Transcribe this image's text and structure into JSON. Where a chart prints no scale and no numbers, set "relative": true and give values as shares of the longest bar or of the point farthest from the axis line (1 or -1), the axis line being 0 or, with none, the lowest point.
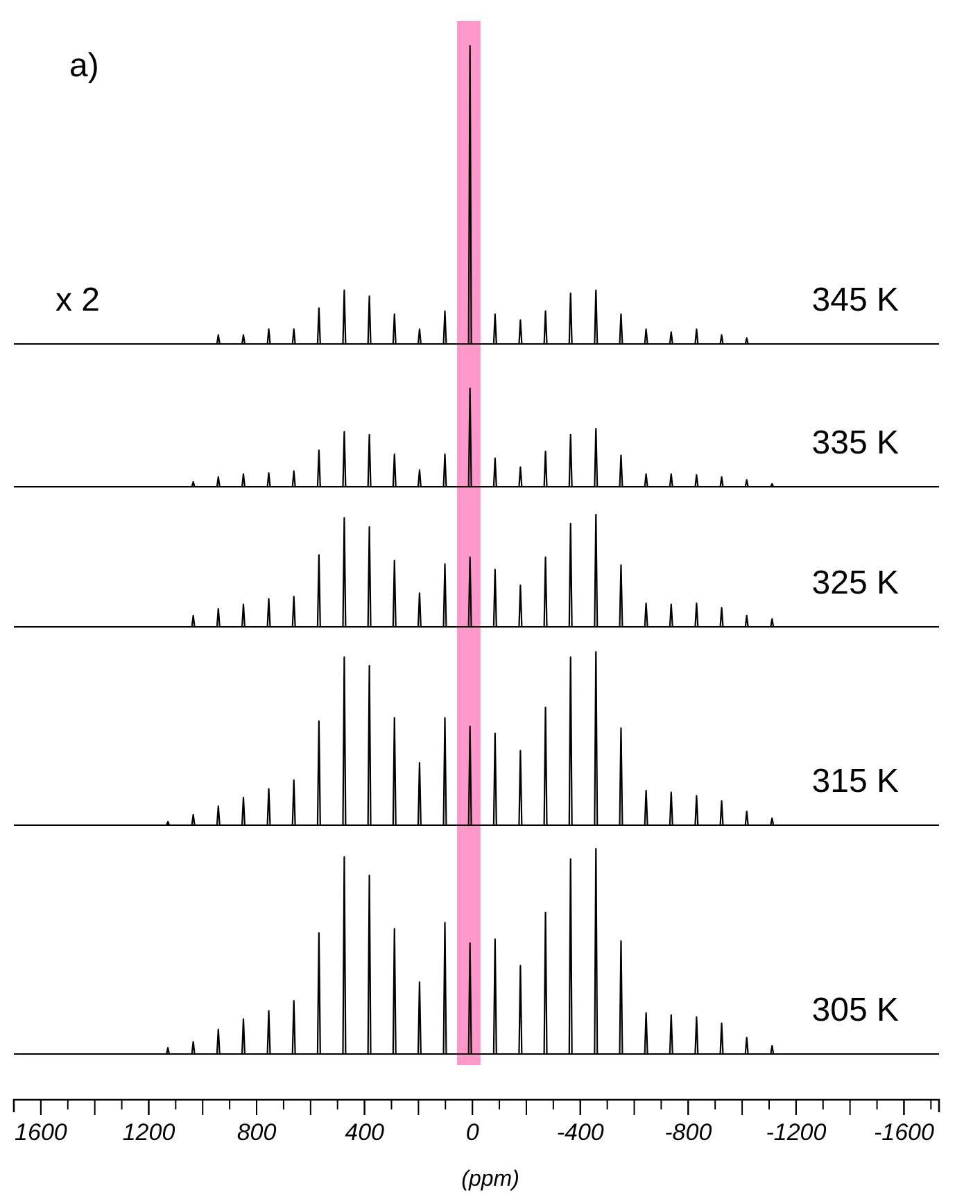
{
  "chart_data": [
    {
      "type": "line",
      "relative": true,
      "xlim": [
        1700,
        -1730
      ],
      "tick_labels": false,
      "annotations": [
        "a)",
        "x 2"
      ],
      "bands": [
        {
          "axis": "x",
          "from": 57,
          "to": -30,
          "color": "#ff99cc"
        }
      ],
      "x": [
        1700,
        1134,
        1129,
        1124,
        1040,
        1035,
        1030,
        947,
        942,
        937,
        854,
        849,
        844,
        760,
        755,
        750,
        667,
        662,
        657,
        574,
        569,
        564,
        480,
        475,
        470,
        387,
        382,
        377,
        294,
        289,
        284,
        201,
        196,
        191,
        107,
        102,
        97,
        14,
        9,
        4,
        -79,
        -84,
        -89,
        -173,
        -178,
        -183,
        -266,
        -271,
        -276,
        -359,
        -364,
        -369,
        -453,
        -458,
        -463,
        -546,
        -551,
        -556,
        -639,
        -644,
        -649,
        -732,
        -737,
        -742,
        -826,
        -831,
        -836,
        -919,
        -924,
        -929,
        -1012,
        -1017,
        -1022,
        -1106,
        -1111,
        -1116,
        -1730
      ],
      "series": [
        {
          "name": "345 K",
          "color": "#000000",
          "values": [
            0,
            0,
            0,
            0,
            0,
            0,
            0,
            0,
            0.03,
            0,
            0,
            0.03,
            0,
            0,
            0.05,
            0,
            0,
            0.05,
            0,
            0,
            0.12,
            0,
            0,
            0.18,
            0,
            0,
            0.16,
            0,
            0,
            0.1,
            0,
            0,
            0.05,
            0,
            0,
            0.11,
            0,
            0,
            1,
            0,
            0,
            0.1,
            0,
            0,
            0.08,
            0,
            0,
            0.11,
            0,
            0,
            0.17,
            0,
            0,
            0.18,
            0,
            0,
            0.1,
            0,
            0,
            0.05,
            0,
            0,
            0.04,
            0,
            0,
            0.05,
            0,
            0,
            0.03,
            0,
            0,
            0.02,
            0,
            0,
            0,
            0,
            0
          ]
        }
      ]
    },
    {
      "type": "line",
      "relative": true,
      "xlim": [
        1700,
        -1730
      ],
      "tick_labels": false,
      "bands": [
        {
          "axis": "x",
          "from": 57,
          "to": -30,
          "color": "#ff99cc"
        }
      ],
      "x": [
        1700,
        1134,
        1129,
        1124,
        1040,
        1035,
        1030,
        947,
        942,
        937,
        854,
        849,
        844,
        760,
        755,
        750,
        667,
        662,
        657,
        574,
        569,
        564,
        480,
        475,
        470,
        387,
        382,
        377,
        294,
        289,
        284,
        201,
        196,
        191,
        107,
        102,
        97,
        14,
        9,
        4,
        -79,
        -84,
        -89,
        -173,
        -178,
        -183,
        -266,
        -271,
        -276,
        -359,
        -364,
        -369,
        -453,
        -458,
        -463,
        -546,
        -551,
        -556,
        -639,
        -644,
        -649,
        -732,
        -737,
        -742,
        -826,
        -831,
        -836,
        -919,
        -924,
        -929,
        -1012,
        -1017,
        -1022,
        -1106,
        -1111,
        -1116,
        -1730
      ],
      "series": [
        {
          "name": "335 K",
          "color": "#000000",
          "values": [
            0,
            0,
            0,
            0,
            0,
            0.05,
            0,
            0,
            0.1,
            0,
            0,
            0.13,
            0,
            0,
            0.14,
            0,
            0,
            0.16,
            0,
            0,
            0.37,
            0,
            0,
            0.56,
            0,
            0,
            0.53,
            0,
            0,
            0.33,
            0,
            0,
            0.17,
            0,
            0,
            0.33,
            0,
            0,
            1,
            0,
            0,
            0.29,
            0,
            0,
            0.2,
            0,
            0,
            0.36,
            0,
            0,
            0.53,
            0,
            0,
            0.59,
            0,
            0,
            0.32,
            0,
            0,
            0.13,
            0,
            0,
            0.13,
            0,
            0,
            0.12,
            0,
            0,
            0.1,
            0,
            0,
            0.07,
            0,
            0,
            0.03,
            0,
            0
          ]
        }
      ]
    },
    {
      "type": "line",
      "relative": true,
      "xlim": [
        1700,
        -1730
      ],
      "tick_labels": false,
      "bands": [
        {
          "axis": "x",
          "from": 57,
          "to": -30,
          "color": "#ff99cc"
        }
      ],
      "x": [
        1700,
        1134,
        1129,
        1124,
        1040,
        1035,
        1030,
        947,
        942,
        937,
        854,
        849,
        844,
        760,
        755,
        750,
        667,
        662,
        657,
        574,
        569,
        564,
        480,
        475,
        470,
        387,
        382,
        377,
        294,
        289,
        284,
        201,
        196,
        191,
        107,
        102,
        97,
        14,
        9,
        4,
        -79,
        -84,
        -89,
        -173,
        -178,
        -183,
        -266,
        -271,
        -276,
        -359,
        -364,
        -369,
        -453,
        -458,
        -463,
        -546,
        -551,
        -556,
        -639,
        -644,
        -649,
        -732,
        -737,
        -742,
        -826,
        -831,
        -836,
        -919,
        -924,
        -929,
        -1012,
        -1017,
        -1022,
        -1106,
        -1111,
        -1116,
        -1730
      ],
      "series": [
        {
          "name": "325 K",
          "color": "#000000",
          "values": [
            0,
            0,
            0,
            0,
            0,
            0.1,
            0,
            0,
            0.16,
            0,
            0,
            0.2,
            0,
            0,
            0.25,
            0,
            0,
            0.27,
            0,
            0,
            0.64,
            0,
            0,
            0.97,
            0,
            0,
            0.89,
            0,
            0,
            0.59,
            0,
            0,
            0.3,
            0,
            0,
            0.56,
            0,
            0,
            0.62,
            0,
            0,
            0.51,
            0,
            0,
            0.37,
            0,
            0,
            0.62,
            0,
            0,
            0.92,
            0,
            0,
            1,
            0,
            0,
            0.55,
            0,
            0,
            0.21,
            0,
            0,
            0.2,
            0,
            0,
            0.21,
            0,
            0,
            0.17,
            0,
            0,
            0.1,
            0,
            0,
            0.07,
            0,
            0
          ]
        }
      ]
    },
    {
      "type": "line",
      "relative": true,
      "xlim": [
        1700,
        -1730
      ],
      "tick_labels": false,
      "bands": [
        {
          "axis": "x",
          "from": 57,
          "to": -30,
          "color": "#ff99cc"
        }
      ],
      "x": [
        1700,
        1134,
        1129,
        1124,
        1040,
        1035,
        1030,
        947,
        942,
        937,
        854,
        849,
        844,
        760,
        755,
        750,
        667,
        662,
        657,
        574,
        569,
        564,
        480,
        475,
        470,
        387,
        382,
        377,
        294,
        289,
        284,
        201,
        196,
        191,
        107,
        102,
        97,
        14,
        9,
        4,
        -79,
        -84,
        -89,
        -173,
        -178,
        -183,
        -266,
        -271,
        -276,
        -359,
        -364,
        -369,
        -453,
        -458,
        -463,
        -546,
        -551,
        -556,
        -639,
        -644,
        -649,
        -732,
        -737,
        -742,
        -826,
        -831,
        -836,
        -919,
        -924,
        -929,
        -1012,
        -1017,
        -1022,
        -1106,
        -1111,
        -1116,
        -1730
      ],
      "series": [
        {
          "name": "315 K",
          "color": "#000000",
          "values": [
            0,
            0,
            0.02,
            0,
            0,
            0.06,
            0,
            0,
            0.11,
            0,
            0,
            0.16,
            0,
            0,
            0.21,
            0,
            0,
            0.26,
            0,
            0,
            0.6,
            0,
            0,
            0.97,
            0,
            0,
            0.92,
            0,
            0,
            0.62,
            0,
            0,
            0.36,
            0,
            0,
            0.62,
            0,
            0,
            0.57,
            0,
            0,
            0.53,
            0,
            0,
            0.43,
            0,
            0,
            0.68,
            0,
            0,
            0.97,
            0,
            0,
            1,
            0,
            0,
            0.56,
            0,
            0,
            0.2,
            0,
            0,
            0.19,
            0,
            0,
            0.17,
            0,
            0,
            0.14,
            0,
            0,
            0.08,
            0,
            0,
            0.04,
            0,
            0
          ]
        }
      ]
    },
    {
      "type": "line",
      "relative": true,
      "xlim": [
        1700,
        -1730
      ],
      "tick_labels": "x",
      "xlabel": "(ppm)",
      "xticks": [
        1600,
        1200,
        800,
        400,
        0,
        -400,
        -800,
        -1200,
        -1600
      ],
      "bands": [
        {
          "axis": "x",
          "from": 57,
          "to": -30,
          "color": "#ff99cc"
        }
      ],
      "x": [
        1700,
        1134,
        1129,
        1124,
        1040,
        1035,
        1030,
        947,
        942,
        937,
        854,
        849,
        844,
        760,
        755,
        750,
        667,
        662,
        657,
        574,
        569,
        564,
        480,
        475,
        470,
        387,
        382,
        377,
        294,
        289,
        284,
        201,
        196,
        191,
        107,
        102,
        97,
        14,
        9,
        4,
        -79,
        -84,
        -89,
        -173,
        -178,
        -183,
        -266,
        -271,
        -276,
        -359,
        -364,
        -369,
        -453,
        -458,
        -463,
        -546,
        -551,
        -556,
        -639,
        -644,
        -649,
        -732,
        -737,
        -742,
        -826,
        -831,
        -836,
        -919,
        -924,
        -929,
        -1012,
        -1017,
        -1022,
        -1106,
        -1111,
        -1116,
        -1730
      ],
      "series": [
        {
          "name": "305 K",
          "color": "#000000",
          "values": [
            0,
            0,
            0.03,
            0,
            0,
            0.06,
            0,
            0,
            0.12,
            0,
            0,
            0.17,
            0,
            0,
            0.21,
            0,
            0,
            0.26,
            0,
            0,
            0.59,
            0,
            0,
            0.96,
            0,
            0,
            0.87,
            0,
            0,
            0.61,
            0,
            0,
            0.35,
            0,
            0,
            0.64,
            0,
            0,
            0.54,
            0,
            0,
            0.56,
            0,
            0,
            0.43,
            0,
            0,
            0.69,
            0,
            0,
            0.95,
            0,
            0,
            1,
            0,
            0,
            0.55,
            0,
            0,
            0.2,
            0,
            0,
            0.19,
            0,
            0,
            0.18,
            0,
            0,
            0.15,
            0,
            0,
            0.08,
            0,
            0,
            0.04,
            0,
            0
          ]
        }
      ]
    }
  ]
}
